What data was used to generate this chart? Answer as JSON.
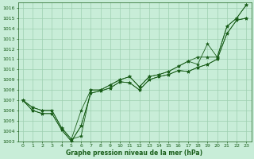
{
  "xlabel": "Graphe pression niveau de la mer (hPa)",
  "background_color": "#c8edd8",
  "grid_color": "#9ecfb0",
  "line_color": "#1a5e1a",
  "ylim": [
    1003,
    1016.5
  ],
  "xlim": [
    -0.5,
    23.5
  ],
  "yticks": [
    1003,
    1004,
    1005,
    1006,
    1007,
    1008,
    1009,
    1010,
    1011,
    1012,
    1013,
    1014,
    1015,
    1016
  ],
  "xticks": [
    0,
    1,
    2,
    3,
    4,
    5,
    6,
    7,
    8,
    9,
    10,
    11,
    12,
    13,
    14,
    15,
    16,
    17,
    18,
    19,
    20,
    21,
    22,
    23
  ],
  "series": [
    [
      1007.0,
      1006.3,
      1006.0,
      1006.0,
      1004.3,
      1003.2,
      1003.5,
      1008.0,
      1008.0,
      1008.5,
      1009.0,
      1009.3,
      1008.3,
      1009.3,
      1009.5,
      1009.8,
      1010.3,
      1010.8,
      1010.5,
      1012.5,
      1011.2,
      1014.2,
      1015.0,
      1016.3
    ],
    [
      1007.0,
      1006.3,
      1006.0,
      1006.0,
      1004.3,
      1003.2,
      1006.0,
      1008.0,
      1008.0,
      1008.5,
      1009.0,
      1009.3,
      1008.3,
      1009.3,
      1009.5,
      1009.8,
      1010.3,
      1010.8,
      1011.2,
      1011.2,
      1011.2,
      1014.2,
      1015.0,
      1016.3
    ],
    [
      1007.0,
      1006.0,
      1005.7,
      1005.7,
      1004.1,
      1003.0,
      1004.5,
      1007.7,
      1007.9,
      1008.2,
      1008.8,
      1008.7,
      1008.0,
      1009.0,
      1009.3,
      1009.5,
      1009.9,
      1009.8,
      1010.2,
      1010.5,
      1011.0,
      1013.5,
      1014.8,
      1015.0
    ],
    [
      1007.0,
      1006.0,
      1005.7,
      1005.7,
      1004.1,
      1003.0,
      1004.5,
      1007.7,
      1007.9,
      1008.2,
      1008.8,
      1008.7,
      1008.0,
      1009.0,
      1009.3,
      1009.5,
      1009.9,
      1009.8,
      1010.2,
      1010.5,
      1011.0,
      1013.5,
      1014.8,
      1015.0
    ]
  ],
  "marker": "*",
  "marker_size": 3.0,
  "linewidth": 0.6,
  "tick_fontsize": 4.5,
  "xlabel_fontsize": 5.5
}
